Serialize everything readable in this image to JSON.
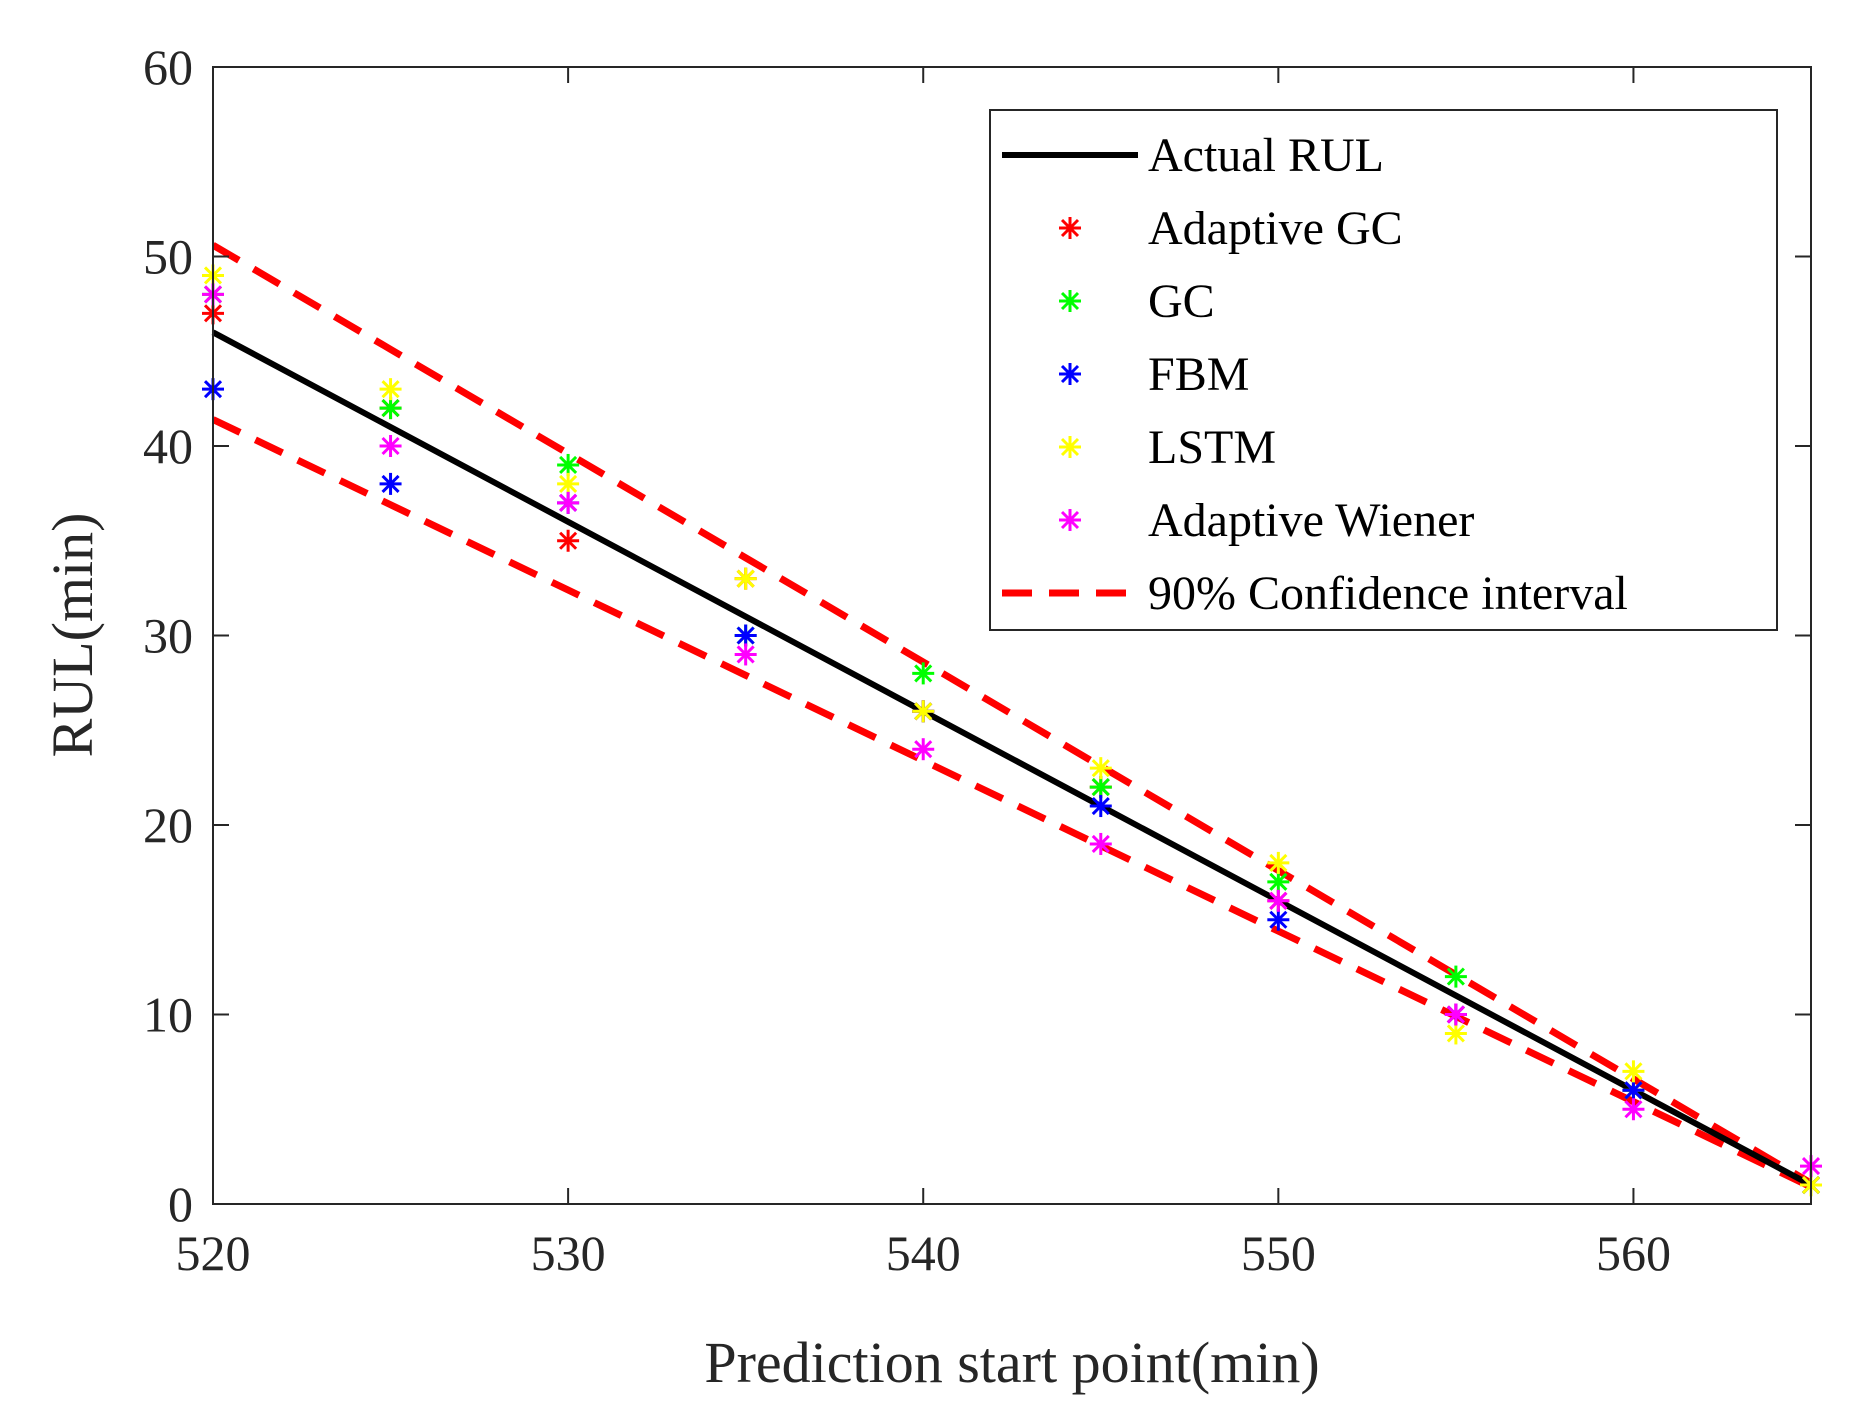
{
  "chart_data": {
    "type": "scatter",
    "xlabel": "Prediction start point(min)",
    "ylabel": "RUL(min)",
    "xlim": [
      520,
      565
    ],
    "ylim": [
      0,
      60
    ],
    "xticks": [
      520,
      530,
      540,
      550,
      560
    ],
    "yticks": [
      0,
      10,
      20,
      30,
      40,
      50,
      60
    ],
    "grid": false,
    "legend_position": "top-right",
    "x": [
      520,
      525,
      530,
      535,
      540,
      545,
      550,
      555,
      560,
      565
    ],
    "actual": {
      "name": "Actual RUL",
      "color": "#000000",
      "values": [
        46,
        41,
        36,
        31,
        26,
        21,
        16,
        11,
        6,
        1
      ]
    },
    "confidence": {
      "name": "90% Confidence interval",
      "color": "#ff0000",
      "upper": [
        50.6,
        45.1,
        39.6,
        34.1,
        28.6,
        23.1,
        17.6,
        12.1,
        6.6,
        1.1
      ],
      "lower": [
        41.4,
        36.9,
        32.4,
        27.9,
        23.4,
        18.9,
        14.4,
        9.9,
        5.4,
        0.9
      ]
    },
    "series": [
      {
        "name": "Adaptive GC",
        "color": "#ff0000",
        "values": [
          47,
          42,
          35,
          33,
          26,
          22,
          16,
          10,
          6,
          1
        ]
      },
      {
        "name": "GC",
        "color": "#00ff00",
        "values": [
          48,
          42,
          39,
          30,
          28,
          22,
          17,
          12,
          6,
          1
        ]
      },
      {
        "name": "FBM",
        "color": "#0000ff",
        "values": [
          43,
          38,
          37,
          30,
          26,
          21,
          15,
          10,
          6,
          1
        ]
      },
      {
        "name": "LSTM",
        "color": "#ffff00",
        "values": [
          49,
          43,
          38,
          33,
          26,
          23,
          18,
          9,
          7,
          1
        ]
      },
      {
        "name": "Adaptive Wiener",
        "color": "#ff00ff",
        "values": [
          48,
          40,
          37,
          29,
          24,
          19,
          16,
          10,
          5,
          2
        ]
      }
    ]
  }
}
